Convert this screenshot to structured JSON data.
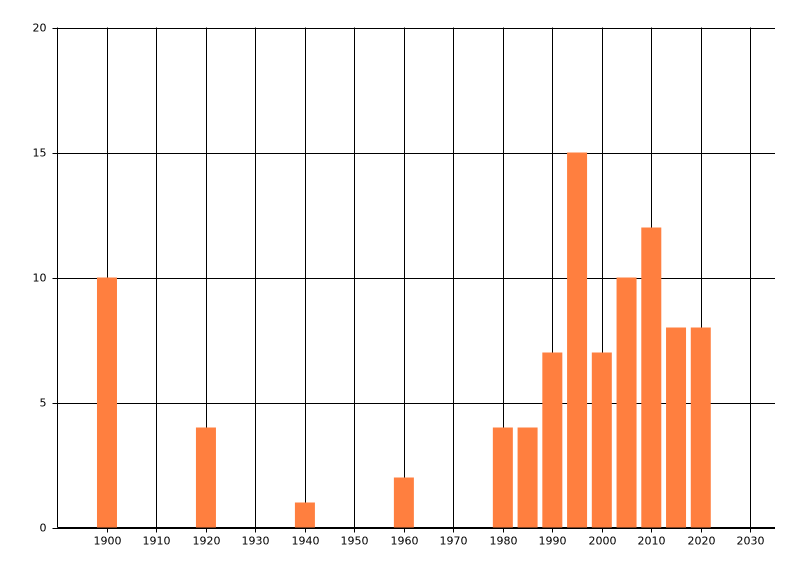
{
  "chart_data": {
    "type": "bar",
    "x": [
      1900,
      1920,
      1940,
      1960,
      1980,
      1985,
      1990,
      1995,
      2000,
      2005,
      2010,
      2015,
      2020
    ],
    "values": [
      10,
      4,
      1,
      2,
      4,
      4,
      7,
      15,
      7,
      10,
      12,
      8,
      8
    ],
    "color": "#ff7f3f",
    "xlim": [
      1890,
      2035
    ],
    "xticks": [
      1900,
      1910,
      1920,
      1930,
      1940,
      1950,
      1960,
      1970,
      1980,
      1990,
      2000,
      2010,
      2020,
      2030
    ],
    "ylim": [
      0,
      20
    ],
    "yticks": [
      0,
      5,
      10,
      15,
      20
    ],
    "grid": true
  }
}
